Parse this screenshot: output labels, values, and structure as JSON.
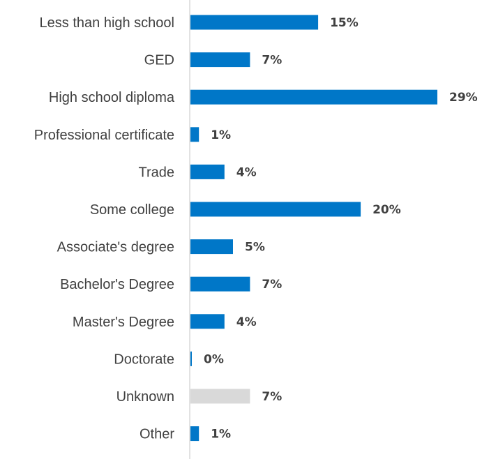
{
  "chart_data": {
    "type": "bar",
    "orientation": "horizontal",
    "categories": [
      "Less than high school",
      "GED",
      "High school diploma",
      "Professional certificate",
      "Trade",
      "Some college",
      "Associate's degree",
      "Bachelor's Degree",
      "Master's Degree",
      "Doctorate",
      "Unknown",
      "Other"
    ],
    "values": [
      15,
      7,
      29,
      1,
      4,
      20,
      5,
      7,
      4,
      0,
      7,
      1
    ],
    "value_labels": [
      "15%",
      "7%",
      "29%",
      "1%",
      "4%",
      "20%",
      "5%",
      "7%",
      "4%",
      "0%",
      "7%",
      "1%"
    ],
    "bar_colors": [
      "#0077c8",
      "#0077c8",
      "#0077c8",
      "#0077c8",
      "#0077c8",
      "#0077c8",
      "#0077c8",
      "#0077c8",
      "#0077c8",
      "#0077c8",
      "#d9d9d9",
      "#0077c8"
    ],
    "title": "",
    "xlabel": "",
    "ylabel": "",
    "xlim": [
      0,
      30
    ],
    "grid": false,
    "legend": "none",
    "colors": {
      "primary": "#0077c8",
      "muted": "#d9d9d9",
      "axis": "#d9d9d9",
      "text": "#404040"
    }
  }
}
